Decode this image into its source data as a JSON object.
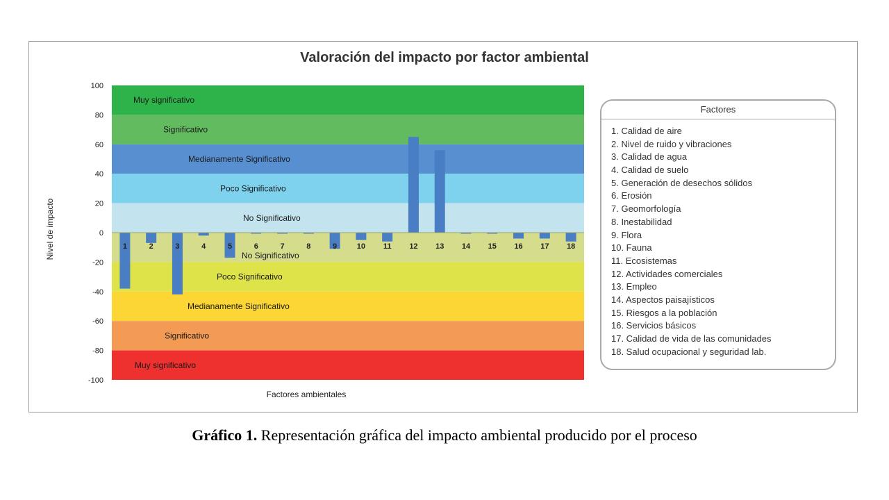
{
  "caption": {
    "label": "Gráfico 1.",
    "text": " Representación gráfica del impacto ambiental producido por el proceso"
  },
  "chart_data": {
    "type": "bar",
    "title": "Valoración del impacto por factor ambiental",
    "xlabel": "Factores ambientales",
    "ylabel": "Nivel de impacto",
    "ylim": [
      -100,
      100
    ],
    "yticks": [
      100,
      80,
      60,
      40,
      20,
      0,
      -20,
      -40,
      -60,
      -80,
      -100
    ],
    "categories": [
      "1",
      "2",
      "3",
      "4",
      "5",
      "6",
      "7",
      "8",
      "9",
      "10",
      "11",
      "12",
      "13",
      "14",
      "15",
      "16",
      "17",
      "18"
    ],
    "values": [
      -38,
      -7,
      -42,
      -2,
      -17,
      -0.5,
      -0.5,
      -0.5,
      -11,
      -5,
      -6,
      65,
      56,
      -0.5,
      -0.5,
      -4,
      -4,
      -6
    ],
    "bar_color": "#4a7ec4",
    "bands": [
      {
        "from": 80,
        "to": 100,
        "label": "Muy significativo",
        "color": "#2db34a"
      },
      {
        "from": 60,
        "to": 80,
        "label": "Significativo",
        "color": "#62bc5f"
      },
      {
        "from": 40,
        "to": 60,
        "label": "Medianamente Significativo",
        "color": "#588fd0"
      },
      {
        "from": 20,
        "to": 40,
        "label": "Poco Significativo",
        "color": "#7ed2ee"
      },
      {
        "from": 0,
        "to": 20,
        "label": "No Significativo",
        "color": "#c3e4ef"
      },
      {
        "from": -20,
        "to": 0,
        "label": "No Significativo",
        "color": "#d5dd8c"
      },
      {
        "from": -40,
        "to": -20,
        "label": "Poco Significativo",
        "color": "#dfe34a"
      },
      {
        "from": -60,
        "to": -40,
        "label": "Medianamente Significativo",
        "color": "#fbd634"
      },
      {
        "from": -80,
        "to": -60,
        "label": "Significativo",
        "color": "#f39b55"
      },
      {
        "from": -100,
        "to": -80,
        "label": "Muy significativo",
        "color": "#ee302e"
      }
    ],
    "legend": {
      "title": "Factores",
      "items": [
        "1.   Calidad de aire",
        "2.   Nivel de ruido y vibraciones",
        "3.   Calidad de agua",
        "4.   Calidad de suelo",
        "5.   Generación de desechos sólidos",
        "6.   Erosión",
        "7.   Geomorfología",
        "8.   Inestabilidad",
        "9.   Flora",
        "10. Fauna",
        "11. Ecosistemas",
        "12. Actividades comerciales",
        "13. Empleo",
        "14. Aspectos paisajísticos",
        "15. Riesgos a la población",
        "16. Servicios básicos",
        "17. Calidad de vida de las comunidades",
        "18. Salud ocupacional y seguridad lab."
      ]
    }
  }
}
